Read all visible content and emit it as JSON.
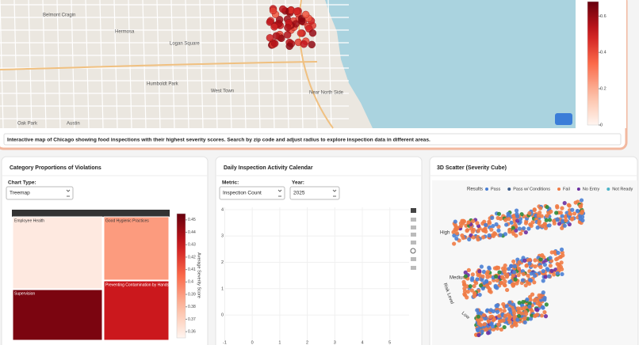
{
  "map": {
    "labels": [
      "Belmont Cragin",
      "Hermosa",
      "Logan Square",
      "Humboldt Park",
      "West Town",
      "Near North Side",
      "Oak Park",
      "Austin"
    ],
    "colorbar": {
      "range": [
        0,
        0.68
      ],
      "ticks": [
        0,
        0.2,
        0.4,
        0.6
      ]
    },
    "caption": "Interactive map of Chicago showing food inspections with their highest severity scores. Search by zip code and adjust radius to explore inspection data in different areas."
  },
  "panels": [
    {
      "title": "Category Proportions of Violations",
      "control_label": "Chart Type:",
      "control_value": "Treemap",
      "treemap": {
        "tiles": [
          {
            "label": "Employee Health",
            "severity": 0.36
          },
          {
            "label": "Good Hygienic Practices",
            "severity": 0.39
          },
          {
            "label": "Supervision",
            "severity": 0.45
          },
          {
            "label": "Preventing Contamination by Hands",
            "severity": 0.43
          }
        ],
        "colorbar_title": "Average Severity Score",
        "colorbar_range": [
          0.355,
          0.455
        ],
        "colorbar_ticks": [
          0.36,
          0.37,
          0.38,
          0.39,
          0.4,
          0.41,
          0.42,
          0.43,
          0.44,
          0.45
        ]
      }
    },
    {
      "title": "Daily Inspection Activity Calendar",
      "controls": [
        {
          "label": "Metric:",
          "value": "Inspection Count"
        },
        {
          "label": "Year:",
          "value": "2025"
        }
      ],
      "plot": {
        "xlim": [
          -1.1,
          5.7
        ],
        "ylim": [
          -1.14,
          4.09
        ],
        "xticks": [
          -1,
          0,
          1,
          2,
          3,
          4,
          5
        ],
        "yticks": [
          0,
          1,
          2,
          3,
          4
        ]
      }
    },
    {
      "title": "3D Scatter (Severity Cube)",
      "legend_title": "Results",
      "legend": [
        {
          "name": "Pass",
          "color": "#4a7fd4"
        },
        {
          "name": "Pass w/ Conditions",
          "color": "#3f5d8a"
        },
        {
          "name": "Fail",
          "color": "#ef7b45"
        },
        {
          "name": "No Entry",
          "color": "#6b2fa0"
        },
        {
          "name": "Not Ready",
          "color": "#4bb3c7"
        }
      ],
      "axis_labels": [
        "High",
        "Medium",
        "Low",
        "Risk Level"
      ]
    }
  ]
}
